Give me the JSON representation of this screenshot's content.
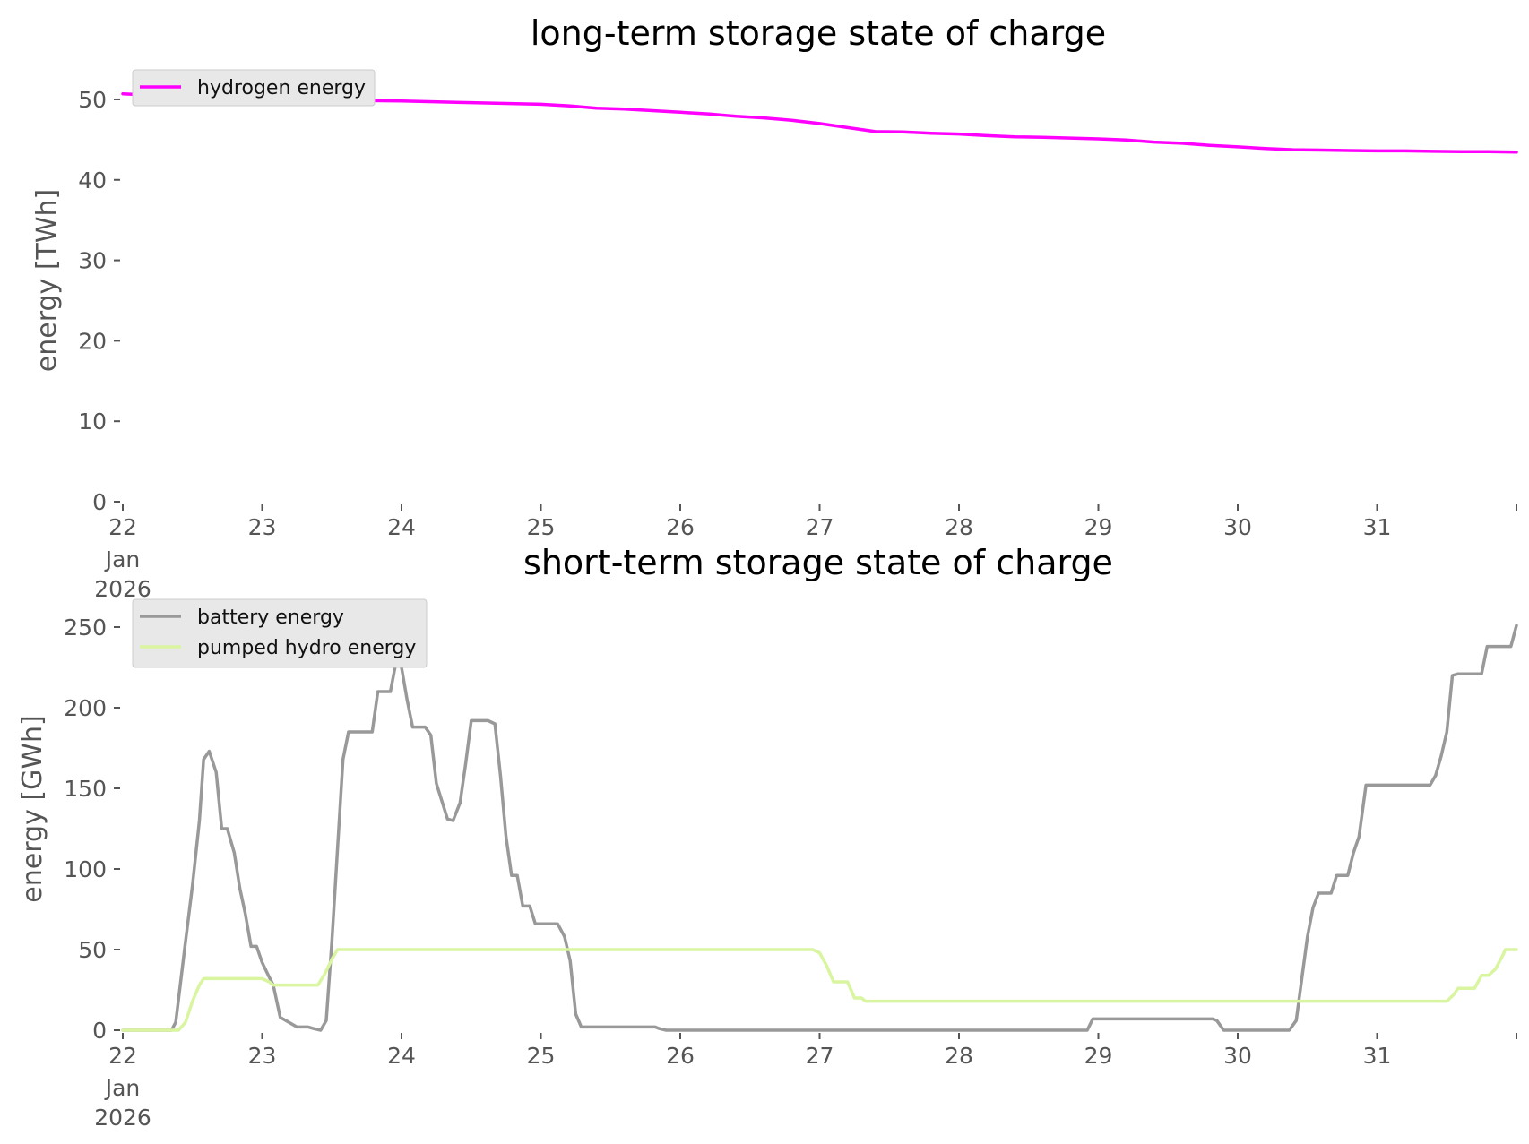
{
  "chart_data": [
    {
      "type": "line",
      "title": "long-term storage state of charge",
      "xlabel": "",
      "ylabel": "energy [TWh]",
      "xlim": [
        22,
        32
      ],
      "ylim": [
        0,
        52
      ],
      "yticks": [
        0,
        10,
        20,
        30,
        40,
        50
      ],
      "xtick_values": [
        22,
        23,
        24,
        25,
        26,
        27,
        28,
        29,
        30,
        31,
        32
      ],
      "xtick_labels": [
        "22",
        "23",
        "24",
        "25",
        "26",
        "27",
        "28",
        "29",
        "30",
        "31",
        ""
      ],
      "xtick_sublabels": [
        "Jan",
        "2026"
      ],
      "grid": false,
      "legend_position": "top-left",
      "series": [
        {
          "name": "hydrogen energy",
          "color": "#ff00ff",
          "x": [
            22,
            22.5,
            23,
            23.5,
            24,
            24.5,
            25,
            25.2,
            25.4,
            25.6,
            25.8,
            26,
            26.2,
            26.4,
            26.6,
            26.8,
            27,
            27.2,
            27.4,
            27.6,
            27.8,
            28,
            28.2,
            28.4,
            28.6,
            28.8,
            29,
            29.2,
            29.4,
            29.6,
            29.8,
            30,
            30.2,
            30.4,
            30.6,
            30.8,
            31,
            31.2,
            31.4,
            31.6,
            31.8,
            32
          ],
          "y": [
            50.7,
            50.3,
            50.0,
            49.9,
            49.8,
            49.6,
            49.4,
            49.2,
            48.9,
            48.8,
            48.6,
            48.4,
            48.2,
            47.9,
            47.7,
            47.4,
            47.0,
            46.5,
            46.0,
            45.95,
            45.8,
            45.7,
            45.5,
            45.35,
            45.3,
            45.2,
            45.1,
            44.95,
            44.7,
            44.55,
            44.3,
            44.1,
            43.9,
            43.75,
            43.7,
            43.65,
            43.6,
            43.6,
            43.55,
            43.5,
            43.5,
            43.45
          ]
        }
      ]
    },
    {
      "type": "line",
      "title": "short-term storage state of charge",
      "xlabel": "",
      "ylabel": "energy [GWh]",
      "xlim": [
        22,
        32
      ],
      "ylim": [
        0,
        260
      ],
      "yticks": [
        0,
        50,
        100,
        150,
        200,
        250
      ],
      "xtick_values": [
        22,
        23,
        24,
        25,
        26,
        27,
        28,
        29,
        30,
        31,
        32
      ],
      "xtick_labels": [
        "22",
        "23",
        "24",
        "25",
        "26",
        "27",
        "28",
        "29",
        "30",
        "31",
        ""
      ],
      "xtick_sublabels": [
        "Jan",
        "2026"
      ],
      "grid": false,
      "legend_position": "top-left",
      "series": [
        {
          "name": "battery energy",
          "color": "#999999",
          "x": [
            22,
            22.35,
            22.38,
            22.45,
            22.5,
            22.55,
            22.58,
            22.62,
            22.67,
            22.71,
            22.75,
            22.8,
            22.84,
            22.88,
            22.92,
            22.96,
            23.0,
            23.05,
            23.08,
            23.13,
            23.25,
            23.29,
            23.33,
            23.37,
            23.42,
            23.46,
            23.5,
            23.58,
            23.62,
            23.67,
            23.79,
            23.83,
            23.87,
            23.92,
            23.96,
            24.0,
            24.04,
            24.08,
            24.13,
            24.17,
            24.21,
            24.25,
            24.29,
            24.33,
            24.37,
            24.42,
            24.46,
            24.5,
            24.62,
            24.67,
            24.71,
            24.75,
            24.79,
            24.83,
            24.87,
            24.92,
            24.96,
            25.0,
            25.12,
            25.17,
            25.21,
            25.25,
            25.29,
            25.3,
            25.4,
            25.82,
            25.85,
            25.9,
            28.92,
            28.96,
            29.0,
            29.78,
            29.82,
            29.85,
            29.9,
            30.37,
            30.42,
            30.46,
            30.5,
            30.54,
            30.58,
            30.62,
            30.67,
            30.71,
            30.75,
            30.79,
            30.83,
            30.87,
            30.92,
            30.96,
            31.0,
            31.38,
            31.42,
            31.46,
            31.5,
            31.54,
            31.58,
            31.62,
            31.67,
            31.75,
            31.79,
            31.83,
            31.88,
            31.92,
            31.96,
            32
          ],
          "y": [
            0,
            0,
            5,
            55,
            90,
            130,
            168,
            173,
            160,
            125,
            125,
            110,
            88,
            72,
            52,
            52,
            42,
            33,
            28,
            8,
            2,
            2,
            2,
            1,
            0,
            6,
            55,
            168,
            185,
            185,
            185,
            210,
            210,
            210,
            228,
            225,
            205,
            188,
            188,
            188,
            183,
            153,
            142,
            131,
            130,
            141,
            165,
            192,
            192,
            190,
            158,
            120,
            96,
            96,
            77,
            77,
            66,
            66,
            66,
            58,
            43,
            10,
            2,
            2,
            2,
            2,
            1,
            0,
            0,
            7,
            7,
            7,
            7,
            6,
            0,
            0,
            6,
            32,
            58,
            76,
            85,
            85,
            85,
            96,
            96,
            96,
            110,
            120,
            152,
            152,
            152,
            152,
            158,
            170,
            185,
            220,
            221,
            221,
            221,
            221,
            238,
            238,
            238,
            238,
            238,
            251
          ]
        },
        {
          "name": "pumped hydro energy",
          "color": "#d9f5a0",
          "x": [
            22,
            22.4,
            22.45,
            22.5,
            22.55,
            22.58,
            22.62,
            23.0,
            23.05,
            23.08,
            23.4,
            23.45,
            23.5,
            23.54,
            23.6,
            26.95,
            27.0,
            27.05,
            27.1,
            27.12,
            27.2,
            27.25,
            27.3,
            27.33,
            31.5,
            31.55,
            31.58,
            31.7,
            31.75,
            31.8,
            31.85,
            31.9,
            31.92,
            32
          ],
          "y": [
            0,
            0,
            5,
            18,
            28,
            32,
            32,
            32,
            30,
            28,
            28,
            35,
            44,
            50,
            50,
            50,
            48,
            40,
            30,
            30,
            30,
            20,
            20,
            18,
            18,
            22,
            26,
            26,
            34,
            34,
            38,
            46,
            50,
            50
          ]
        }
      ]
    }
  ]
}
